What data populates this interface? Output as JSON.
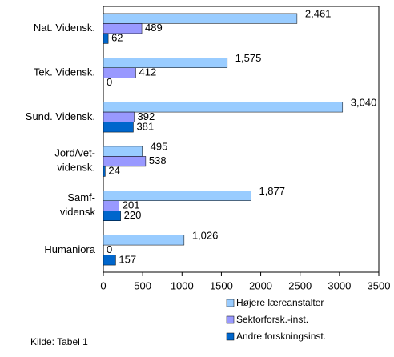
{
  "chart_data": {
    "type": "hbar",
    "categories": [
      "Nat. Vidensk.",
      "Tek. Vidensk.",
      "Sund. Vidensk.",
      "Jord/vet-vidensk.",
      "Samf-vidensk",
      "Humaniora"
    ],
    "series": [
      {
        "name": "Højere læreanstalter",
        "color": "#99ccff",
        "values": [
          2461,
          1575,
          3040,
          495,
          1877,
          1026
        ],
        "value_labels": [
          "2,461",
          "1,575",
          "3,040",
          "495",
          "1,877",
          "1,026"
        ]
      },
      {
        "name": "Sektorforsk.-inst.",
        "color": "#9999ff",
        "values": [
          489,
          412,
          392,
          538,
          201,
          0
        ]
      },
      {
        "name": "Andre forskningsinst.",
        "color": "#0066cc",
        "values": [
          62,
          0,
          381,
          24,
          220,
          157
        ]
      }
    ],
    "xlim": [
      0,
      3500
    ],
    "xticks": [
      0,
      500,
      1000,
      1500,
      2000,
      2500,
      3000,
      3500
    ],
    "note": "Kilde: Tabel 1"
  }
}
